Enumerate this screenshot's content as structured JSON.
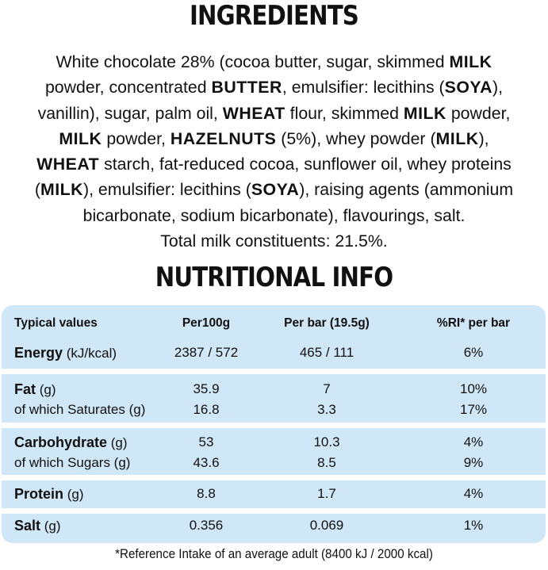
{
  "ingredients": {
    "title": "INGREDIENTS",
    "lines": [
      [
        {
          "t": "White chocolate 28% (cocoa butter, sugar, skimmed "
        },
        {
          "t": "MILK",
          "b": true
        }
      ],
      [
        {
          "t": "powder, concentrated "
        },
        {
          "t": "BUTTER",
          "b": true
        },
        {
          "t": ", emulsifier: lecithins ("
        },
        {
          "t": "SOYA",
          "b": true
        },
        {
          "t": "),"
        }
      ],
      [
        {
          "t": "vanillin), sugar, palm oil, "
        },
        {
          "t": "WHEAT",
          "b": true
        },
        {
          "t": " flour, skimmed "
        },
        {
          "t": "MILK",
          "b": true
        },
        {
          "t": " powder,"
        }
      ],
      [
        {
          "t": "MILK",
          "b": true
        },
        {
          "t": " powder, "
        },
        {
          "t": "HAZELNUTS",
          "b": true
        },
        {
          "t": " (5%), whey powder ("
        },
        {
          "t": "MILK",
          "b": true
        },
        {
          "t": "),"
        }
      ],
      [
        {
          "t": "WHEAT",
          "b": true
        },
        {
          "t": " starch, fat-reduced cocoa, sunflower oil, whey proteins"
        }
      ],
      [
        {
          "t": "("
        },
        {
          "t": "MILK",
          "b": true
        },
        {
          "t": "), emulsifier: lecithins ("
        },
        {
          "t": "SOYA",
          "b": true
        },
        {
          "t": "), raising agents (ammonium"
        }
      ],
      [
        {
          "t": "bicarbonate, sodium bicarbonate), flavourings, salt."
        }
      ],
      [
        {
          "t": "Total milk constituents: 21.5%."
        }
      ]
    ]
  },
  "nutrition": {
    "title": "NUTRITIONAL INFO",
    "headers": {
      "c1": "Typical values",
      "c2": "Per100g",
      "c3": "Per bar (19.5g)",
      "c4": "%RI* per bar"
    },
    "energy": {
      "name": "Energy",
      "unit": " (kJ/kcal)",
      "per100": "2387 / 572",
      "perbar": "465 / 111",
      "ri": "6%"
    },
    "fat": {
      "name": "Fat",
      "unit": " (g)",
      "per100": "35.9",
      "perbar": "7",
      "ri": "10%"
    },
    "saturates": {
      "name": "of which Saturates (g)",
      "per100": "16.8",
      "perbar": "3.3",
      "ri": "17%"
    },
    "carbohydrate": {
      "name": "Carbohydrate",
      "unit": " (g)",
      "per100": "53",
      "perbar": "10.3",
      "ri": "4%"
    },
    "sugars": {
      "name": "of which Sugars (g)",
      "per100": "43.6",
      "perbar": "8.5",
      "ri": "9%"
    },
    "protein": {
      "name": "Protein",
      "unit": " (g)",
      "per100": "8.8",
      "perbar": "1.7",
      "ri": "4%"
    },
    "salt": {
      "name": "Salt",
      "unit": " (g)",
      "per100": "0.356",
      "perbar": "0.069",
      "ri": "1%"
    },
    "footnote": "*Reference Intake of an average adult (8400 kJ / 2000 kcal)"
  },
  "colors": {
    "table_bg": "#cfe7f7",
    "text": "#111111"
  }
}
